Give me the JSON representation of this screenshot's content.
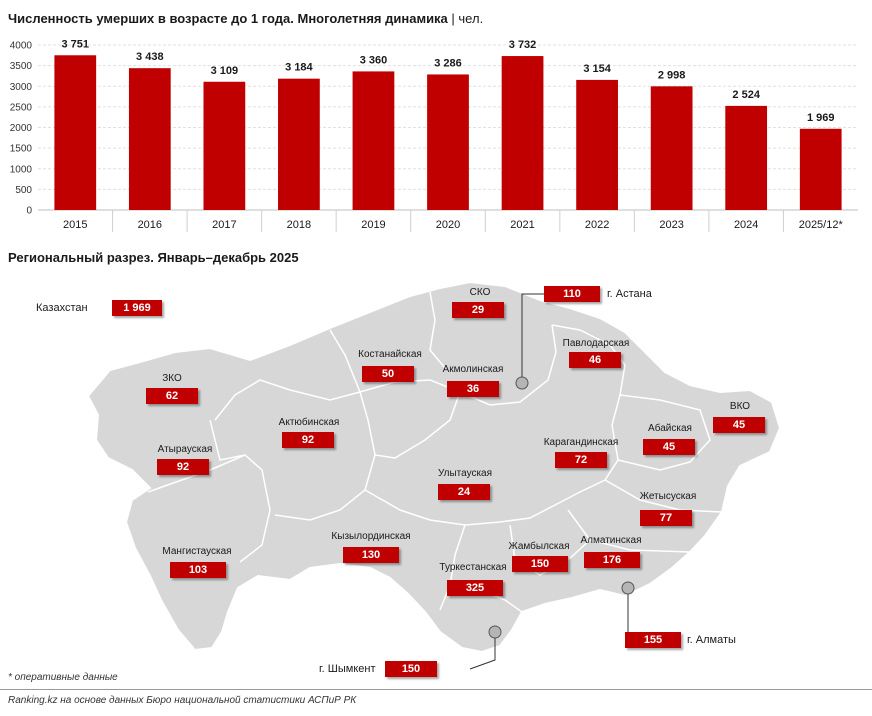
{
  "title": "Численность умерших в возрасте до 1 года. Многолетняя динамика",
  "unit": "| чел.",
  "subtitle": "Региональный разрез. Январь–декабрь 2025",
  "chart_data": {
    "type": "bar",
    "categories": [
      "2015",
      "2016",
      "2017",
      "2018",
      "2019",
      "2020",
      "2021",
      "2022",
      "2023",
      "2024",
      "2025/12*"
    ],
    "values": [
      3751,
      3438,
      3109,
      3184,
      3360,
      3286,
      3732,
      3154,
      2998,
      2524,
      1969
    ],
    "value_labels": [
      "3 751",
      "3 438",
      "3 109",
      "3 184",
      "3 360",
      "3 286",
      "3 732",
      "3 154",
      "2 998",
      "2 524",
      "1 969"
    ],
    "y_ticks": [
      "0",
      "500",
      "1000",
      "1500",
      "2000",
      "2500",
      "3000",
      "3500",
      "4000"
    ],
    "ylim": [
      0,
      4000
    ],
    "grid": true,
    "bar_color": "#c00000"
  },
  "map": {
    "national": {
      "label": "Казахстан",
      "value": "1 969"
    },
    "regions": [
      {
        "name": "СКО",
        "value": "29"
      },
      {
        "name": "Костанайская",
        "value": "50"
      },
      {
        "name": "Акмолинская",
        "value": "36"
      },
      {
        "name": "Павлодарская",
        "value": "46"
      },
      {
        "name": "ЗКО",
        "value": "62"
      },
      {
        "name": "Актюбинская",
        "value": "92"
      },
      {
        "name": "Атырауская",
        "value": "92"
      },
      {
        "name": "Карагандинская",
        "value": "72"
      },
      {
        "name": "Абайская",
        "value": "45"
      },
      {
        "name": "ВКО",
        "value": "45"
      },
      {
        "name": "Улытауская",
        "value": "24"
      },
      {
        "name": "Жетысуская",
        "value": "77"
      },
      {
        "name": "Мангистауская",
        "value": "103"
      },
      {
        "name": "Кызылординская",
        "value": "130"
      },
      {
        "name": "Жамбылская",
        "value": "150"
      },
      {
        "name": "Алматинская",
        "value": "176"
      },
      {
        "name": "Туркестанская",
        "value": "325"
      }
    ],
    "cities": [
      {
        "name": "г. Астана",
        "value": "110"
      },
      {
        "name": "г. Алматы",
        "value": "155"
      },
      {
        "name": "г. Шымкент",
        "value": "150"
      }
    ]
  },
  "footnote": "* оперативные данные",
  "source": "Ranking.kz на основе данных Бюро национальной статистики АСПиР РК"
}
